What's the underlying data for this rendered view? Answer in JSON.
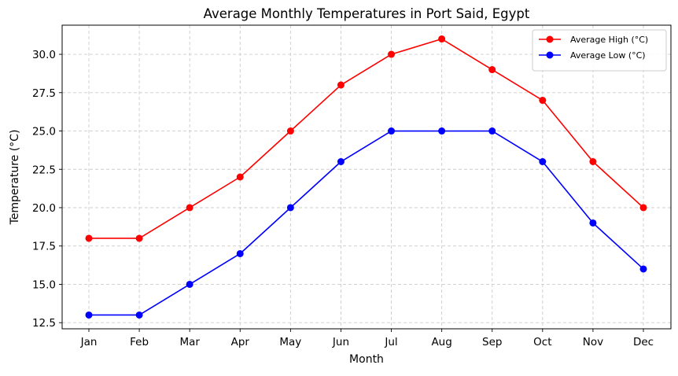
{
  "chart_data": {
    "type": "line",
    "title": "Average Monthly Temperatures in Port Said, Egypt",
    "xlabel": "Month",
    "ylabel": "Temperature (°C)",
    "categories": [
      "Jan",
      "Feb",
      "Mar",
      "Apr",
      "May",
      "Jun",
      "Jul",
      "Aug",
      "Sep",
      "Oct",
      "Nov",
      "Dec"
    ],
    "ylim": [
      12.1,
      31.9
    ],
    "yticks": [
      12.5,
      15.0,
      17.5,
      20.0,
      22.5,
      25.0,
      27.5,
      30.0
    ],
    "ytick_labels": [
      "12.5",
      "15.0",
      "17.5",
      "20.0",
      "22.5",
      "25.0",
      "27.5",
      "30.0"
    ],
    "grid": true,
    "grid_style": "dashed",
    "legend_position": "top-right",
    "series": [
      {
        "name": "Average High (°C)",
        "color": "#ff0000",
        "marker": "circle",
        "values": [
          18,
          18,
          20,
          22,
          25,
          28,
          30,
          31,
          29,
          27,
          23,
          20
        ]
      },
      {
        "name": "Average Low (°C)",
        "color": "#0000ff",
        "marker": "circle",
        "values": [
          13,
          13,
          15,
          17,
          20,
          23,
          25,
          25,
          25,
          23,
          19,
          16
        ]
      }
    ]
  }
}
